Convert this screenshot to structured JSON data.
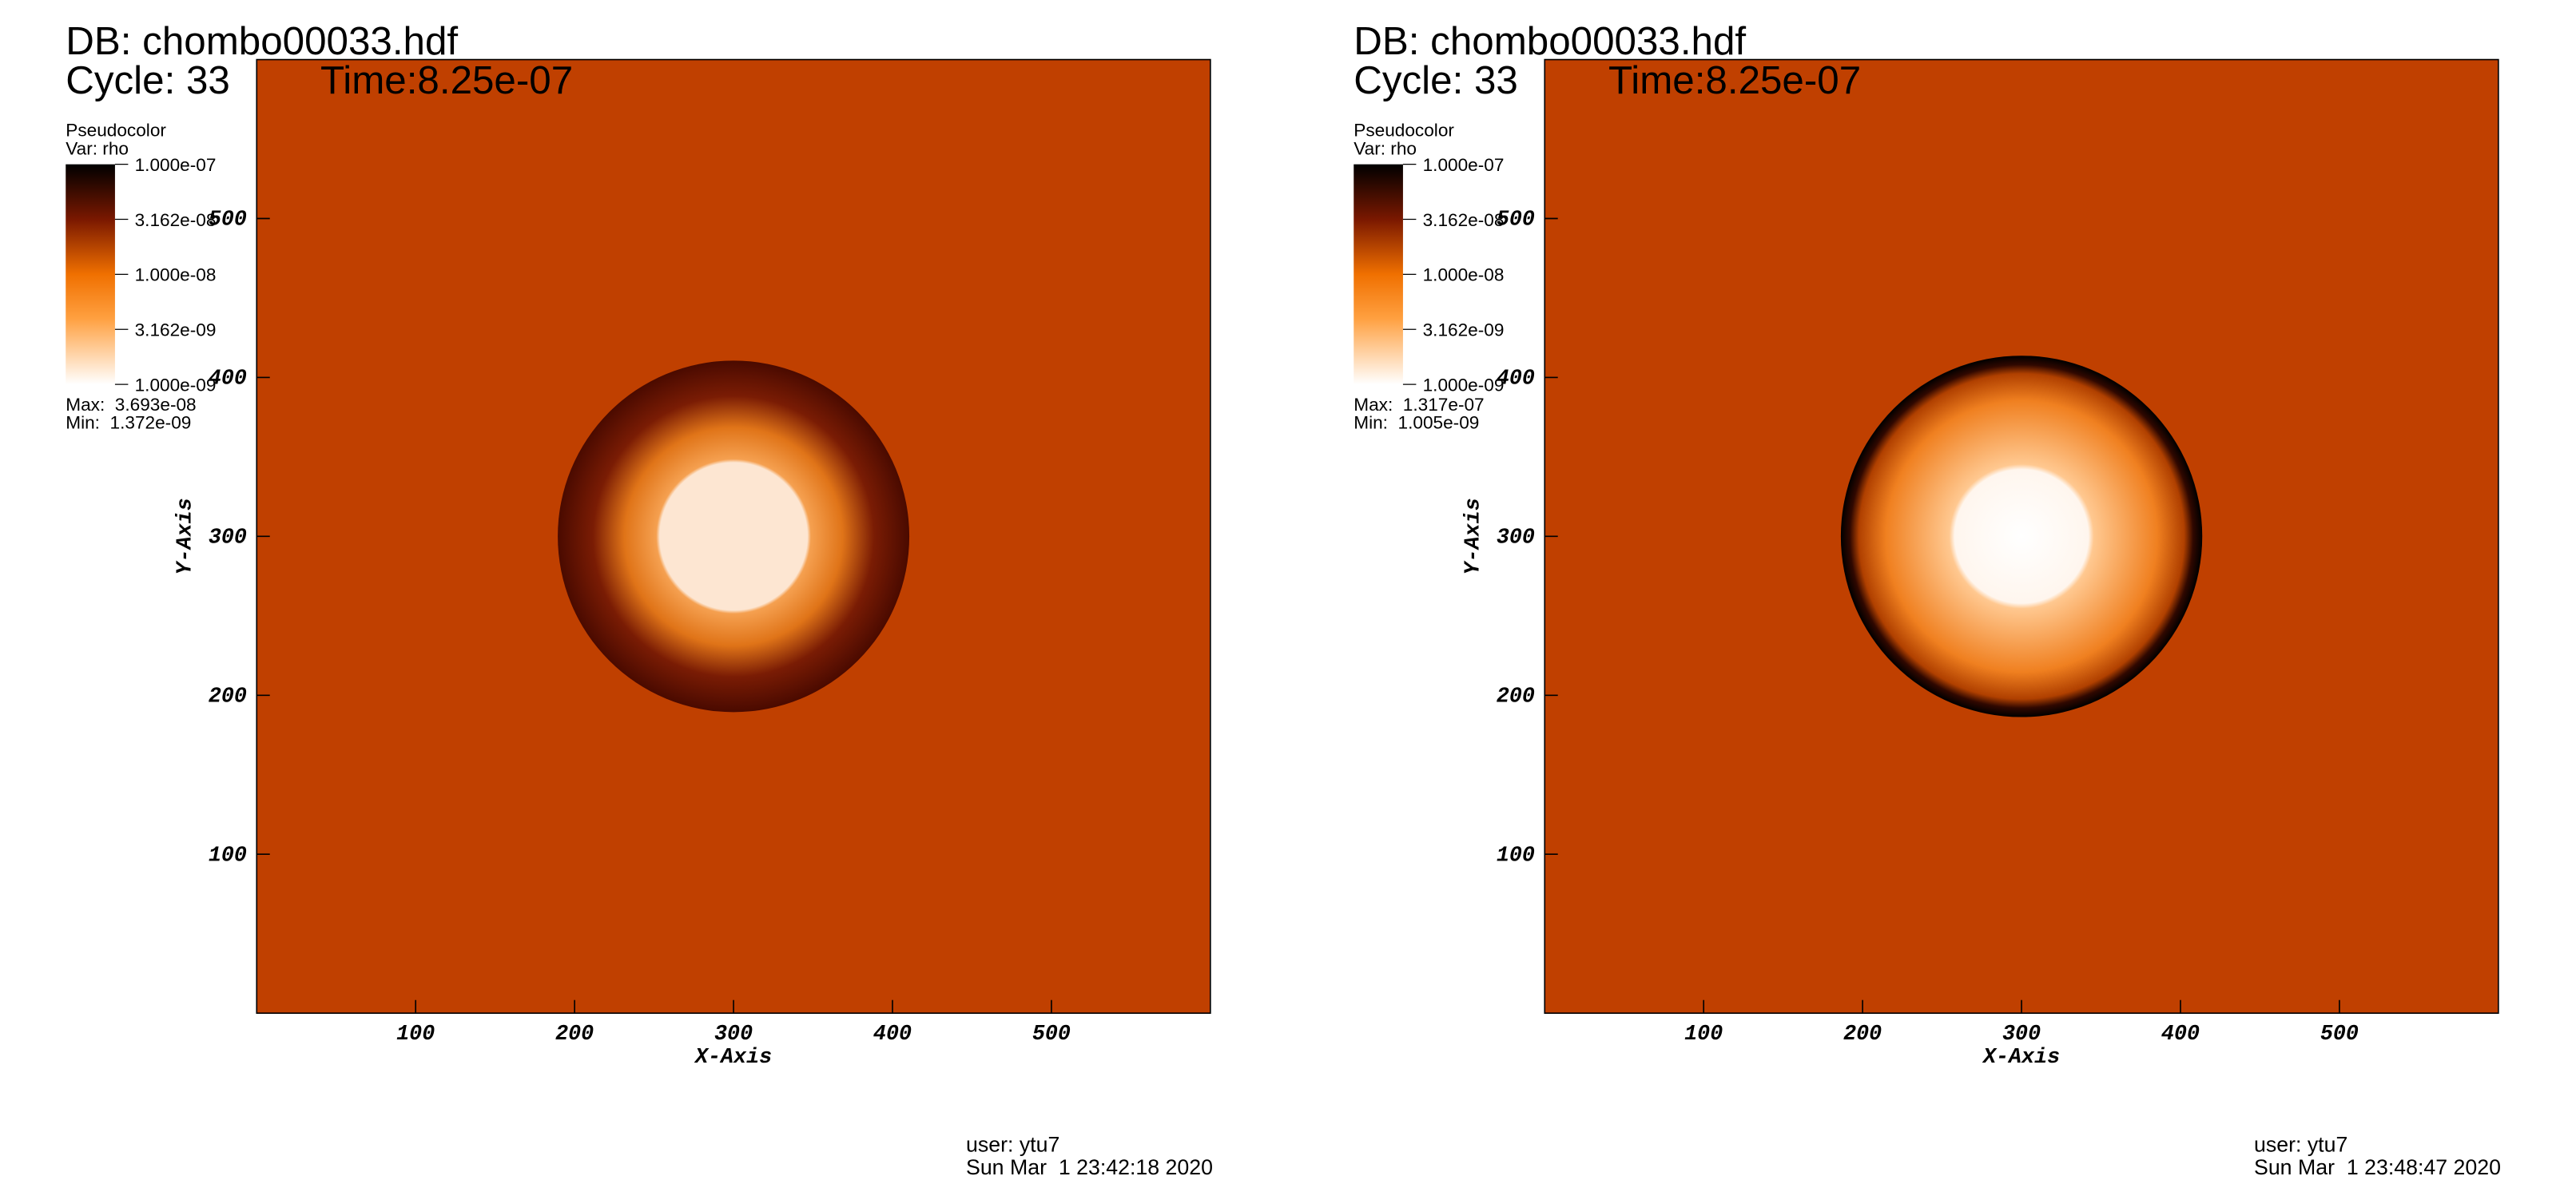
{
  "chart_data": [
    {
      "type": "pseudocolor",
      "title": "DB: chombo00033.hdf",
      "cycle": "Cycle: 33",
      "time": "Time:8.25e-07",
      "legend_title": "Pseudocolor",
      "variable": "Var: rho",
      "colorbar_lim": [
        1e-09,
        1e-07
      ],
      "colorbar_log": true,
      "colorbar_ticks": [
        {
          "value": 1e-07,
          "label": "1.000e-07"
        },
        {
          "value": 3.162e-08,
          "label": "3.162e-08"
        },
        {
          "value": 1e-08,
          "label": "1.000e-08"
        },
        {
          "value": 3.162e-09,
          "label": "3.162e-09"
        },
        {
          "value": 1e-09,
          "label": "1.000e-09"
        }
      ],
      "max": "Max:  3.693e-08",
      "min": "Min:  1.372e-09",
      "xlim": [
        0,
        600
      ],
      "ylim": [
        0,
        600
      ],
      "xticks": [
        100,
        200,
        300,
        400,
        500
      ],
      "yticks": [
        100,
        200,
        300,
        400,
        500
      ],
      "x_label": "X-Axis",
      "y_label": "Y-Axis",
      "background_color": "#c04000",
      "user": "user: ytu7",
      "date": "Sun Mar  1 23:42:18 2020"
    },
    {
      "type": "pseudocolor",
      "title": "DB: chombo00033.hdf",
      "cycle": "Cycle: 33",
      "time": "Time:8.25e-07",
      "legend_title": "Pseudocolor",
      "variable": "Var: rho",
      "colorbar_lim": [
        1e-09,
        1e-07
      ],
      "colorbar_log": true,
      "colorbar_ticks": [
        {
          "value": 1e-07,
          "label": "1.000e-07"
        },
        {
          "value": 3.162e-08,
          "label": "3.162e-08"
        },
        {
          "value": 1e-08,
          "label": "1.000e-08"
        },
        {
          "value": 3.162e-09,
          "label": "3.162e-09"
        },
        {
          "value": 1e-09,
          "label": "1.000e-09"
        }
      ],
      "max": "Max:  1.317e-07",
      "min": "Min:  1.005e-09",
      "xlim": [
        0,
        600
      ],
      "ylim": [
        0,
        600
      ],
      "xticks": [
        100,
        200,
        300,
        400,
        500
      ],
      "yticks": [
        100,
        200,
        300,
        400,
        500
      ],
      "x_label": "X-Axis",
      "y_label": "Y-Axis",
      "background_color": "#c04000",
      "user": "user: ytu7",
      "date": "Sun Mar  1 23:48:47 2020"
    }
  ]
}
